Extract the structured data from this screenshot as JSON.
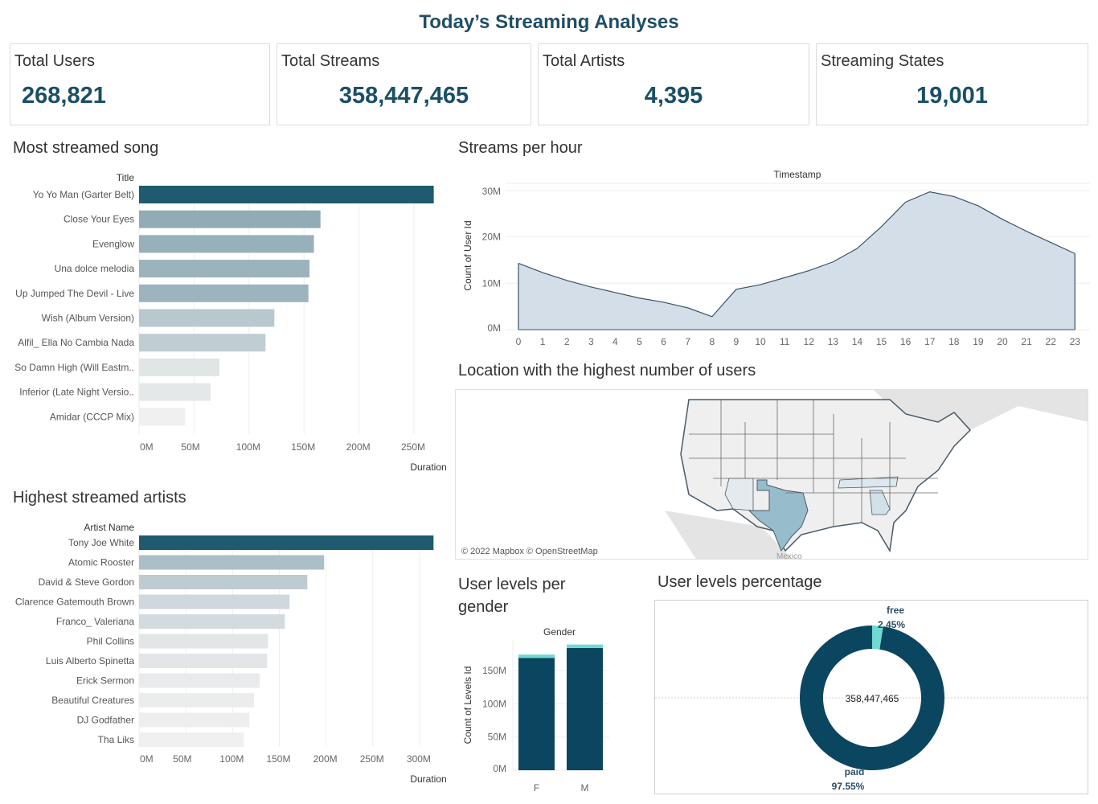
{
  "header": {
    "title": "Today’s Streaming Analyses"
  },
  "kpis": [
    {
      "label": "Total Users",
      "value": "268,821"
    },
    {
      "label": "Total Streams",
      "value": "358,447,465"
    },
    {
      "label": "Total Artists",
      "value": "4,395"
    },
    {
      "label": "Streaming States",
      "value": "19,001"
    }
  ],
  "sections": {
    "songs": "Most streamed song",
    "artists": "Highest streamed artists",
    "hourly": "Streams per hour",
    "map": "Location with the highest number of users",
    "gender": "User levels per gender",
    "levels": "User levels percentage"
  },
  "map": {
    "attribution": "© 2022 Mapbox © OpenStreetMap",
    "label_mexico": "Mexico",
    "highlight_state": "Texas",
    "shaded_states": [
      "Texas",
      "Georgia",
      "Tennessee",
      "Arizona",
      "Mississippi",
      "Oklahoma",
      "Virginia",
      "North Carolina",
      "Alabama",
      "Florida"
    ]
  },
  "chart_data": [
    {
      "id": "songs",
      "type": "bar",
      "orientation": "horizontal",
      "title": "Most streamed song",
      "ylabel": "Title",
      "xlabel": "Duration",
      "xlim": [
        0,
        280
      ],
      "unit": "M",
      "ticks": [
        "0M",
        "50M",
        "100M",
        "150M",
        "200M",
        "250M"
      ],
      "tick_values": [
        0,
        50,
        100,
        150,
        200,
        250
      ],
      "categories": [
        "Yo Yo Man (Garter Belt)",
        "Close Your Eyes",
        "Evenglow",
        "Una dolce melodia",
        "Up Jumped The Devil - Live",
        "Wish (Album Version)",
        "Alfil_ Ella No Cambia Nada",
        "So Damn High (Will Eastm..",
        "Inferior (Late Night Versio..",
        "Amidar (CCCP Mix)"
      ],
      "values": [
        268,
        165,
        159,
        155,
        154,
        123,
        115,
        73,
        65,
        42
      ],
      "color_range": [
        "#f0f0f0",
        "#1f5a70"
      ]
    },
    {
      "id": "artists",
      "type": "bar",
      "orientation": "horizontal",
      "title": "Highest streamed artists",
      "ylabel": "Artist Name",
      "xlabel": "Duration",
      "xlim": [
        0,
        330
      ],
      "unit": "M",
      "ticks": [
        "0M",
        "50M",
        "100M",
        "150M",
        "200M",
        "250M",
        "300M"
      ],
      "tick_values": [
        0,
        50,
        100,
        150,
        200,
        250,
        300
      ],
      "categories": [
        "Tony Joe White",
        "Atomic Rooster",
        "David & Steve Gordon",
        "Clarence Gatemouth Brown",
        "Franco_ Valeriana",
        "Phil Collins",
        "Luis Alberto Spinetta",
        "Erick Sermon",
        "Beautiful Creatures",
        "DJ Godfather",
        "Tha Liks"
      ],
      "values": [
        315,
        198,
        180,
        161,
        156,
        138,
        137,
        129,
        123,
        118,
        112
      ],
      "color_range": [
        "#f0f0f0",
        "#1f5a70"
      ]
    },
    {
      "id": "hourly",
      "type": "area",
      "title": "Streams per hour",
      "xlabel": "Timestamp",
      "ylabel": "Count of User Id",
      "ylim": [
        0,
        31
      ],
      "unit": "M",
      "yticks": [
        "0M",
        "10M",
        "20M",
        "30M"
      ],
      "ytick_values": [
        0,
        10,
        20,
        30
      ],
      "x": [
        0,
        1,
        2,
        3,
        4,
        5,
        6,
        7,
        8,
        9,
        10,
        11,
        12,
        13,
        14,
        15,
        16,
        17,
        18,
        19,
        20,
        21,
        22,
        23
      ],
      "values": [
        14.3,
        12.3,
        10.6,
        9.2,
        8.0,
        6.8,
        5.9,
        4.7,
        2.8,
        8.7,
        9.7,
        11.2,
        12.7,
        14.6,
        17.5,
        22.2,
        27.5,
        29.7,
        28.7,
        26.7,
        23.8,
        21.2,
        18.8,
        16.4
      ],
      "fill": "#d3dee8",
      "stroke": "#3a5466",
      "grid": true
    },
    {
      "id": "gender",
      "type": "bar",
      "stacked": true,
      "title": "User levels per gender",
      "xlabel": "Gender",
      "ylabel": "Count of Levels Id",
      "ylim": [
        0,
        190
      ],
      "unit": "M",
      "yticks": [
        "0M",
        "50M",
        "100M",
        "150M"
      ],
      "ytick_values": [
        0,
        50,
        100,
        150
      ],
      "categories": [
        "F",
        "M"
      ],
      "series": [
        {
          "name": "paid",
          "values": [
            169,
            184
          ],
          "color": "#0b4660"
        },
        {
          "name": "free",
          "values": [
            5,
            5
          ],
          "color": "#6fdad2"
        }
      ]
    },
    {
      "id": "levels",
      "type": "pie",
      "donut": true,
      "title": "User levels percentage",
      "center_label": "358,447,465",
      "slices": [
        {
          "name": "free",
          "value": 2.45,
          "label": "2.45%",
          "color": "#6fdad2"
        },
        {
          "name": "paid",
          "value": 97.55,
          "label": "97.55%",
          "color": "#0b4660"
        }
      ]
    }
  ]
}
